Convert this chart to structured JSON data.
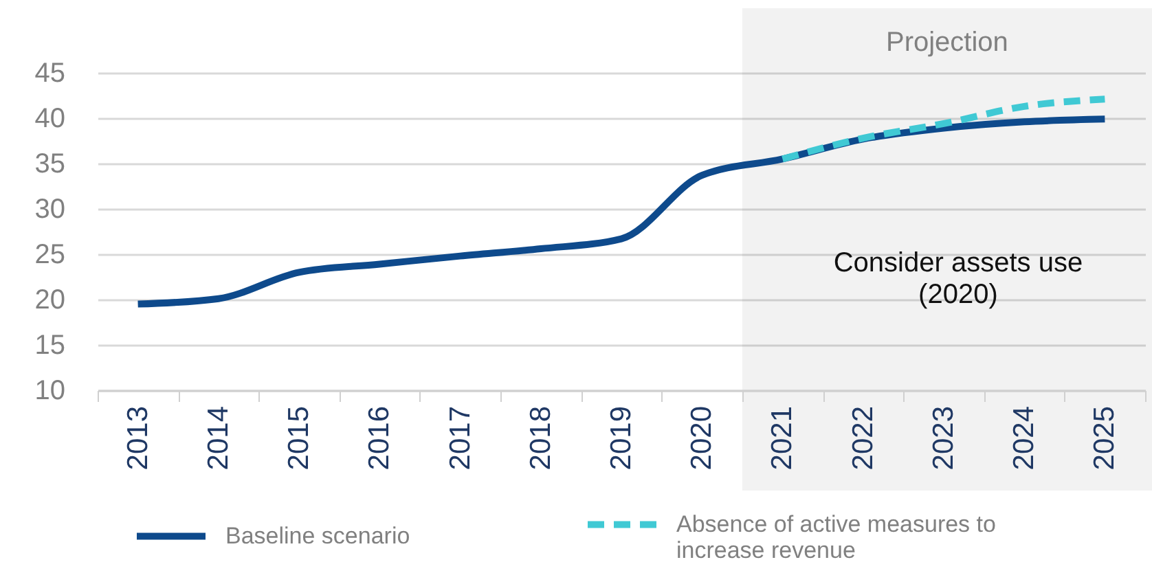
{
  "chart_data": {
    "type": "line",
    "categories": [
      "2013",
      "2014",
      "2015",
      "2016",
      "2017",
      "2018",
      "2019",
      "2020",
      "2021",
      "2022",
      "2023",
      "2024",
      "2025"
    ],
    "series": [
      {
        "name": "Baseline scenario",
        "color": "#0e4a8c",
        "values": [
          19.5,
          20.1,
          23.0,
          23.9,
          24.8,
          25.6,
          26.7,
          33.7,
          35.5,
          37.7,
          38.9,
          39.6,
          39.9
        ]
      },
      {
        "name": "Absence of active measures to increase revenue",
        "color": "#40c9d4",
        "line_style": "dashed",
        "values": [
          null,
          null,
          null,
          null,
          null,
          null,
          null,
          null,
          35.5,
          37.8,
          39.4,
          41.3,
          42.1
        ]
      }
    ],
    "ylim": [
      10,
      45
    ],
    "yticks": [
      10,
      15,
      20,
      25,
      30,
      35,
      40,
      45
    ],
    "grid": "y",
    "legend": "bottom",
    "line_style": "solid",
    "bands": [
      {
        "axis": "x",
        "from": "2021",
        "to": "2025",
        "label": "Projection",
        "color": "#f2f2f2"
      }
    ],
    "annotations": [
      "Consider assets use (2020)"
    ]
  }
}
